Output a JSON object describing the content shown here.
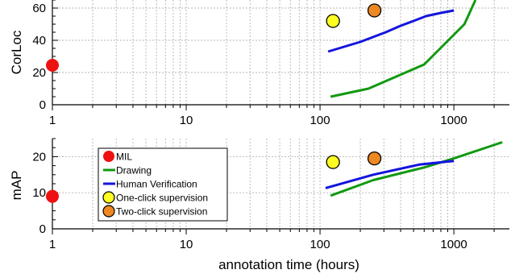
{
  "chart_data": [
    {
      "type": "line",
      "ylabel": "CorLoc",
      "xscale": "log",
      "xlim": [
        1,
        2600
      ],
      "ylim": [
        0,
        65
      ],
      "xticks": [
        1,
        10,
        100,
        1000
      ],
      "xtick_labels": [
        "1",
        "10",
        "100",
        "1000"
      ],
      "yticks": [
        0,
        20,
        40,
        60
      ],
      "ytick_labels": [
        "0",
        "20",
        "40",
        "60"
      ],
      "grid": true,
      "lines": [
        {
          "name": "Drawing",
          "color": "#119911",
          "x": [
            120,
            230,
            600,
            1200,
            1450
          ],
          "y": [
            5,
            10,
            25,
            50,
            65
          ]
        },
        {
          "name": "Human Verification",
          "color": "#1414dd",
          "x": [
            115,
            200,
            310,
            400,
            500,
            620,
            800,
            1000
          ],
          "y": [
            33,
            39,
            45,
            49,
            52,
            55,
            57,
            58.5
          ]
        }
      ],
      "points": [
        {
          "name": "MIL",
          "x": 1,
          "y": 24.5,
          "fill": "#ee1111"
        },
        {
          "name": "One-click supervision",
          "x": 125,
          "y": 52,
          "fill": "#ffff22"
        },
        {
          "name": "Two-click supervision",
          "x": 255,
          "y": 58.5,
          "fill": "#ee8822"
        }
      ]
    },
    {
      "type": "line",
      "ylabel": "mAP",
      "xlabel": "annotation time (hours)",
      "xscale": "log",
      "xlim": [
        1,
        2600
      ],
      "ylim": [
        0,
        25
      ],
      "xticks": [
        1,
        10,
        100,
        1000
      ],
      "xtick_labels": [
        "1",
        "10",
        "100",
        "1000"
      ],
      "yticks": [
        0,
        10,
        20
      ],
      "ytick_labels": [
        "0",
        "10",
        "20"
      ],
      "grid": true,
      "legend_position": "top-left",
      "legend": [
        "MIL",
        "Drawing",
        "Human Verification",
        "One-click supervision",
        "Two-click supervision"
      ],
      "lines": [
        {
          "name": "Drawing",
          "color": "#119911",
          "x": [
            120,
            250,
            600,
            1000,
            2300
          ],
          "y": [
            9.2,
            13.5,
            17,
            19.5,
            24
          ]
        },
        {
          "name": "Human Verification",
          "color": "#1414dd",
          "x": [
            110,
            250,
            550,
            1000
          ],
          "y": [
            11.3,
            15,
            17.8,
            18.8
          ]
        }
      ],
      "points": [
        {
          "name": "MIL",
          "x": 1,
          "y": 9,
          "fill": "#ee1111"
        },
        {
          "name": "One-click supervision",
          "x": 125,
          "y": 18.5,
          "fill": "#ffff22"
        },
        {
          "name": "Two-click supervision",
          "x": 255,
          "y": 19.5,
          "fill": "#ee8822"
        }
      ]
    }
  ]
}
